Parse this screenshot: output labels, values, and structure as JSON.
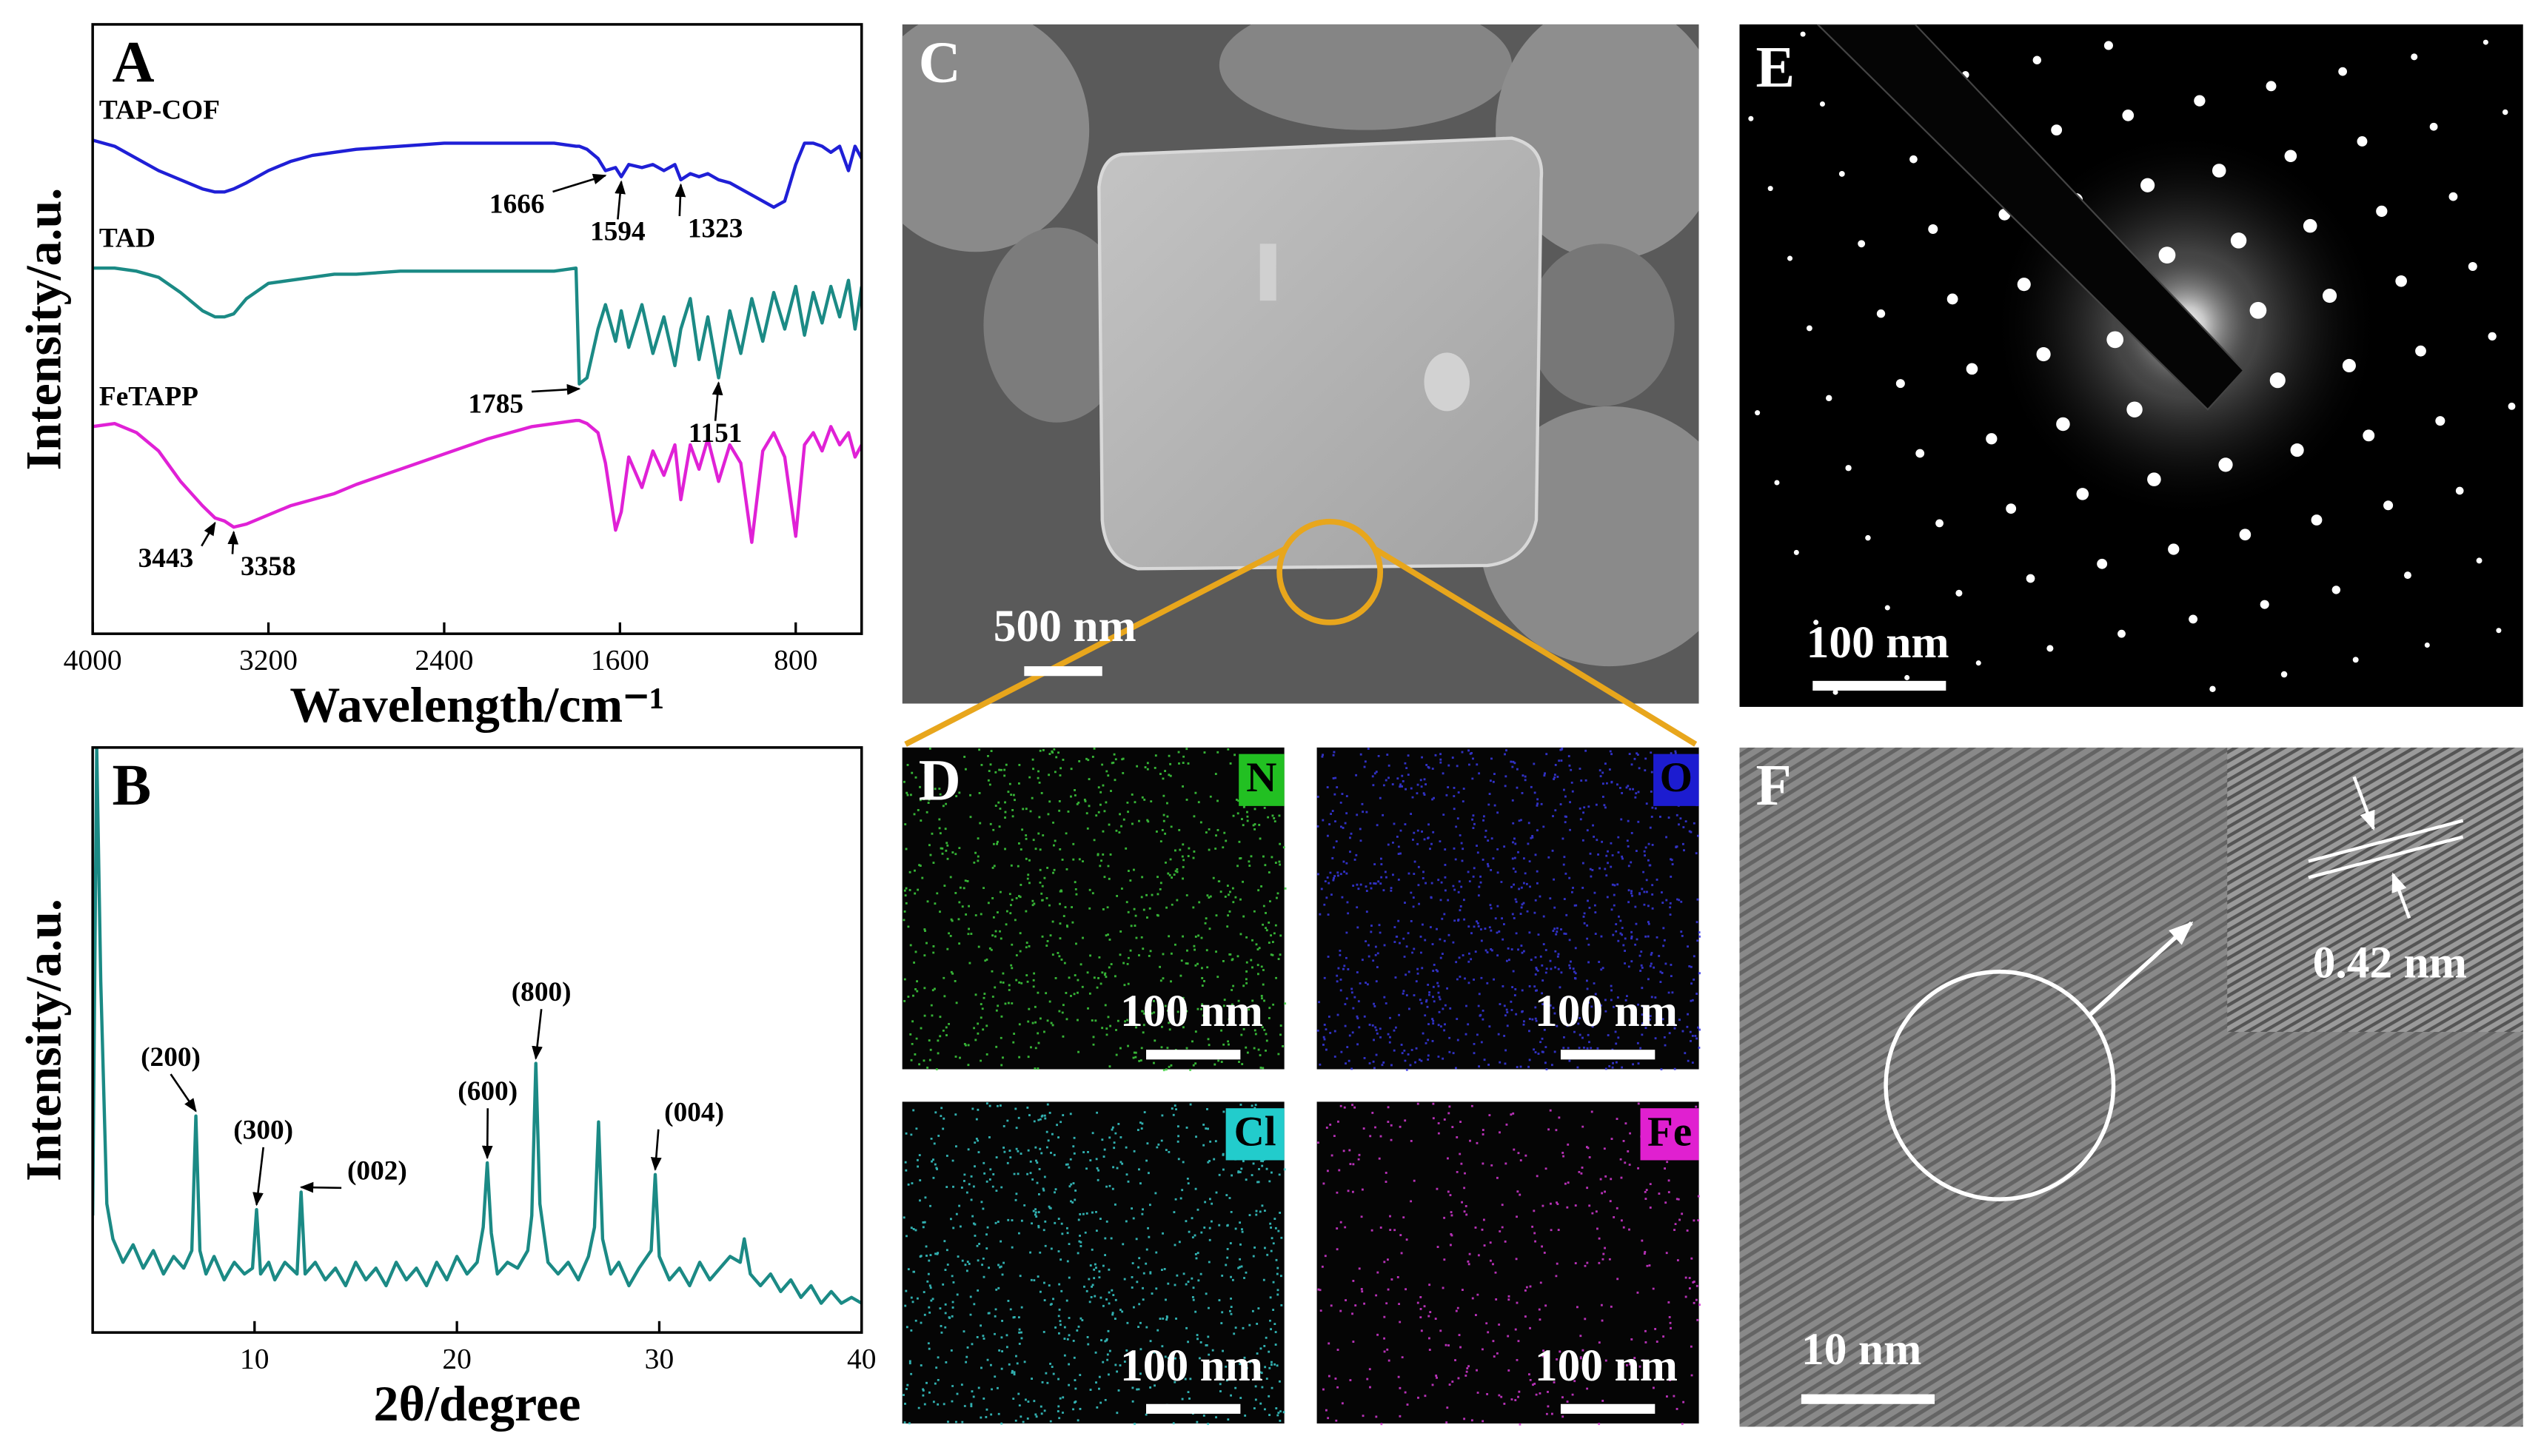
{
  "chart_data": [
    {
      "type": "line",
      "panel_label": "A",
      "x_label": "Wavelength/cm⁻¹",
      "y_label": "Intensity/a.u.",
      "xlim": [
        4000,
        500
      ],
      "xticks": [
        4000,
        3200,
        2400,
        1600,
        800
      ],
      "ylim": [
        0,
        100
      ],
      "x": [
        4000,
        3900,
        3800,
        3700,
        3600,
        3500,
        3443,
        3400,
        3358,
        3300,
        3200,
        3100,
        3000,
        2900,
        2800,
        2600,
        2400,
        2200,
        2000,
        1900,
        1800,
        1785,
        1750,
        1700,
        1666,
        1620,
        1594,
        1560,
        1500,
        1450,
        1400,
        1350,
        1323,
        1280,
        1240,
        1200,
        1151,
        1100,
        1050,
        1000,
        950,
        900,
        850,
        800,
        760,
        720,
        680,
        640,
        600,
        560,
        530,
        500
      ],
      "series": [
        {
          "name": "TAP-COF",
          "color": "#1f1fd6",
          "values": [
            81,
            80,
            78,
            76,
            74.5,
            73,
            72.5,
            72.5,
            73,
            74,
            76,
            77.5,
            78.5,
            79,
            79.5,
            80,
            80.5,
            80.5,
            80.5,
            80.5,
            80,
            80,
            79.5,
            78,
            76,
            76.5,
            75,
            77,
            76.5,
            77,
            76,
            77,
            74.5,
            75.5,
            75,
            75.5,
            74.5,
            74,
            73,
            72,
            71,
            70,
            71,
            77,
            80.5,
            80.5,
            80,
            79,
            80,
            76,
            80,
            78
          ]
        },
        {
          "name": "TAD",
          "color": "#1b8a85",
          "values": [
            60,
            60,
            59.5,
            58.5,
            56,
            53,
            52,
            52,
            52.5,
            55,
            57.5,
            58,
            58.5,
            59,
            59,
            59.5,
            59.5,
            59.5,
            59.5,
            59.5,
            60,
            41,
            42,
            50,
            54,
            48,
            53,
            47,
            54,
            46,
            52,
            44,
            50,
            55,
            45,
            52,
            42,
            53,
            46,
            55,
            48,
            56,
            50,
            57,
            49,
            56,
            51,
            57,
            52,
            58,
            50,
            57
          ]
        },
        {
          "name": "FeTAPP",
          "color": "#e021d6",
          "values": [
            34,
            34.5,
            33,
            30,
            25,
            21,
            19,
            18.5,
            17.5,
            18,
            19.5,
            21,
            22,
            23,
            24.5,
            27,
            29.5,
            32,
            34,
            34.5,
            35,
            35,
            34.5,
            33,
            28,
            17,
            20,
            29,
            24,
            30,
            26,
            31,
            22,
            31,
            27,
            32,
            25,
            31,
            28,
            15,
            30,
            33,
            29,
            16,
            31,
            33,
            30,
            34,
            31,
            33,
            29,
            31
          ]
        }
      ],
      "annotations": [
        {
          "x": 1666,
          "y": 76
        },
        {
          "x": 1594,
          "y": 75
        },
        {
          "x": 1323,
          "y": 74.5
        },
        {
          "x": 1785,
          "y": 41
        },
        {
          "x": 1151,
          "y": 42
        },
        {
          "x": 3443,
          "y": 19
        },
        {
          "x": 3358,
          "y": 17.5
        }
      ]
    },
    {
      "type": "line",
      "panel_label": "B",
      "x_label": "2θ/degree",
      "y_label": "Intensity/a.u.",
      "xlim": [
        2,
        40
      ],
      "xticks": [
        10,
        20,
        30,
        40
      ],
      "ylim": [
        0,
        100
      ],
      "color": "#1b8a85",
      "x": [
        2.0,
        2.2,
        2.4,
        2.7,
        3,
        3.5,
        4,
        4.5,
        5,
        5.5,
        6,
        6.5,
        6.9,
        7.1,
        7.3,
        7.6,
        8,
        8.5,
        9,
        9.5,
        9.9,
        10.1,
        10.3,
        10.7,
        11,
        11.5,
        12.1,
        12.3,
        12.5,
        13,
        13.5,
        14,
        14.5,
        15,
        15.5,
        16,
        16.5,
        17,
        17.5,
        18,
        18.5,
        19,
        19.5,
        20,
        20.5,
        21,
        21.3,
        21.5,
        21.7,
        22,
        22.5,
        23,
        23.5,
        23.7,
        23.9,
        24.1,
        24.5,
        25,
        25.5,
        26,
        26.5,
        26.8,
        27,
        27.2,
        27.6,
        28,
        28.5,
        29,
        29.6,
        29.8,
        30,
        30.5,
        31,
        31.5,
        32,
        32.5,
        33,
        33.5,
        34,
        34.2,
        34.5,
        35,
        35.5,
        36,
        36.5,
        37,
        37.5,
        38,
        38.5,
        39,
        39.5,
        40
      ],
      "values": [
        20,
        100,
        60,
        22,
        16,
        12,
        15,
        11,
        14,
        10,
        13,
        11,
        14,
        37,
        14,
        10,
        13,
        9,
        12,
        10,
        11,
        21,
        10,
        12,
        9,
        12,
        10,
        24,
        10,
        12,
        9,
        11,
        8,
        12,
        9,
        11,
        8,
        12,
        9,
        11,
        8,
        12,
        9,
        13,
        10,
        12,
        18,
        29,
        17,
        10,
        12,
        11,
        14,
        20,
        46,
        22,
        12,
        10,
        12,
        9,
        13,
        18,
        36,
        16,
        10,
        12,
        8,
        11,
        14,
        27,
        13,
        9,
        11,
        8,
        12,
        9,
        11,
        13,
        12,
        16,
        10,
        8,
        10,
        7,
        9,
        6,
        8,
        5,
        7,
        5,
        6,
        5
      ],
      "annotations": [
        {
          "label": "(200)",
          "x": 7.1,
          "y": 37
        },
        {
          "label": "(300)",
          "x": 10.1,
          "y": 21
        },
        {
          "label": "(002)",
          "x": 12.3,
          "y": 24
        },
        {
          "label": "(600)",
          "x": 21.5,
          "y": 29
        },
        {
          "label": "(800)",
          "x": 23.9,
          "y": 46
        },
        {
          "label": "(004)",
          "x": 29.8,
          "y": 27
        }
      ]
    }
  ],
  "images": {
    "C": {
      "panel_label": "C",
      "scale_bar": "500 nm"
    },
    "D": {
      "panel_label": "D",
      "maps": [
        {
          "element": "N",
          "scale_bar": "100 nm"
        },
        {
          "element": "O",
          "scale_bar": "100 nm"
        },
        {
          "element": "Cl",
          "scale_bar": "100 nm"
        },
        {
          "element": "Fe",
          "scale_bar": "100 nm"
        }
      ]
    },
    "E": {
      "panel_label": "E",
      "scale_bar": "100 nm"
    },
    "F": {
      "panel_label": "F",
      "scale_bar": "10 nm",
      "spacing": "0.42 nm"
    }
  }
}
